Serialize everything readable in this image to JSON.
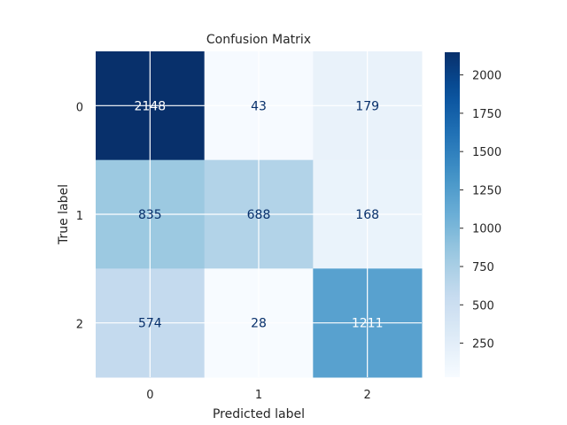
{
  "chart_data": {
    "type": "heatmap",
    "title": "Confusion Matrix",
    "xlabel": "Predicted label",
    "ylabel": "True label",
    "x_categories": [
      "0",
      "1",
      "2"
    ],
    "y_categories": [
      "0",
      "1",
      "2"
    ],
    "values": [
      [
        2148,
        43,
        179
      ],
      [
        835,
        688,
        168
      ],
      [
        574,
        28,
        1211
      ]
    ],
    "colormap": "Blues",
    "color_range": [
      28,
      2148
    ],
    "colorbar_ticks": [
      250,
      500,
      750,
      1000,
      1250,
      1500,
      1750,
      2000
    ],
    "grid": true,
    "dark_text_color": "#08306b",
    "light_text_color": "#ffffff"
  }
}
